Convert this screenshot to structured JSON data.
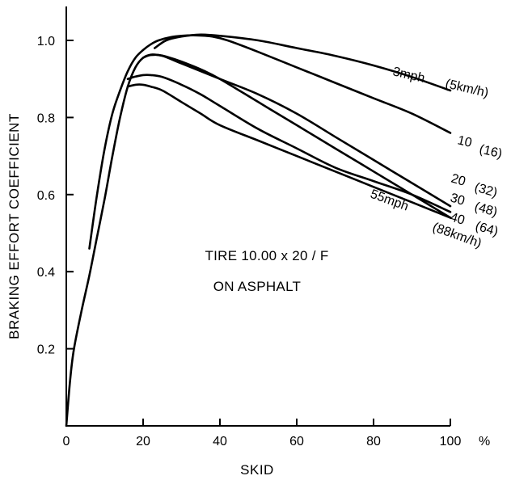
{
  "chart_data": {
    "type": "line",
    "title": "",
    "xlabel": "SKID",
    "ylabel": "BRAKING EFFORT COEFFICIENT",
    "x_unit": "%",
    "xlim": [
      0,
      100
    ],
    "ylim": [
      0,
      1.1
    ],
    "x_ticks": [
      0,
      20,
      40,
      60,
      80,
      100
    ],
    "x_tick_labels": [
      "0",
      "20",
      "40",
      "60",
      "80",
      "100"
    ],
    "y_ticks": [
      0.2,
      0.4,
      0.6,
      0.8,
      1.0
    ],
    "y_tick_labels": [
      "0.2",
      "0.4",
      "0.6",
      "0.8",
      "1.0"
    ],
    "grid": false,
    "legend": "none",
    "annotations": [
      "TIRE 10.00 x 20 / F",
      "ON ASPHALT"
    ],
    "series": [
      {
        "name": "3mph (5km/h)",
        "label_parts": [
          "3mph",
          "(5km/h)"
        ],
        "x": [
          23,
          26,
          30,
          35,
          40,
          50,
          60,
          70,
          80,
          90,
          100
        ],
        "y": [
          0.98,
          1.0,
          1.01,
          1.015,
          1.012,
          1.0,
          0.98,
          0.96,
          0.935,
          0.905,
          0.87
        ]
      },
      {
        "name": "10 (16)",
        "label_parts": [
          "10",
          "(16)"
        ],
        "x": [
          6,
          8,
          10,
          12,
          14,
          16,
          18,
          20,
          22,
          24,
          27,
          30,
          34,
          38,
          42,
          50,
          60,
          70,
          80,
          90,
          100
        ],
        "y": [
          0.46,
          0.6,
          0.72,
          0.81,
          0.87,
          0.92,
          0.955,
          0.975,
          0.99,
          1.0,
          1.008,
          1.012,
          1.013,
          1.01,
          1.0,
          0.97,
          0.93,
          0.89,
          0.85,
          0.81,
          0.76
        ]
      },
      {
        "name": "20 (32)",
        "label_parts": [
          "20",
          "(32)"
        ],
        "x": [
          0,
          1,
          2,
          4,
          6,
          8,
          10,
          12,
          14,
          16,
          18,
          20,
          22,
          24,
          26,
          30,
          35,
          40,
          50,
          60,
          70,
          80,
          90,
          100
        ],
        "y": [
          0.0,
          0.12,
          0.2,
          0.3,
          0.39,
          0.49,
          0.59,
          0.7,
          0.8,
          0.88,
          0.93,
          0.955,
          0.963,
          0.962,
          0.958,
          0.945,
          0.925,
          0.9,
          0.84,
          0.78,
          0.72,
          0.66,
          0.6,
          0.54
        ]
      },
      {
        "name": "30 (48)",
        "label_parts": [
          "30",
          "(48)"
        ],
        "x": [
          20,
          22,
          25,
          30,
          40,
          50,
          60,
          70,
          80,
          90,
          100
        ],
        "y": [
          0.955,
          0.962,
          0.96,
          0.94,
          0.9,
          0.86,
          0.81,
          0.75,
          0.69,
          0.63,
          0.57
        ]
      },
      {
        "name": "40 (64)",
        "label_parts": [
          "40",
          "(64)"
        ],
        "x": [
          16,
          18,
          20,
          22,
          25,
          30,
          35,
          40,
          50,
          60,
          70,
          80,
          90,
          100
        ],
        "y": [
          0.9,
          0.906,
          0.91,
          0.91,
          0.905,
          0.885,
          0.86,
          0.83,
          0.77,
          0.72,
          0.67,
          0.635,
          0.6,
          0.555
        ]
      },
      {
        "name": "55mph (88km/h)",
        "label_parts": [
          "55mph",
          "(88km/h)"
        ],
        "x": [
          16,
          18,
          20,
          22,
          25,
          30,
          35,
          40,
          50,
          60,
          70,
          80,
          90,
          100
        ],
        "y": [
          0.88,
          0.885,
          0.885,
          0.88,
          0.87,
          0.84,
          0.81,
          0.78,
          0.74,
          0.7,
          0.66,
          0.62,
          0.58,
          0.54
        ]
      }
    ]
  }
}
